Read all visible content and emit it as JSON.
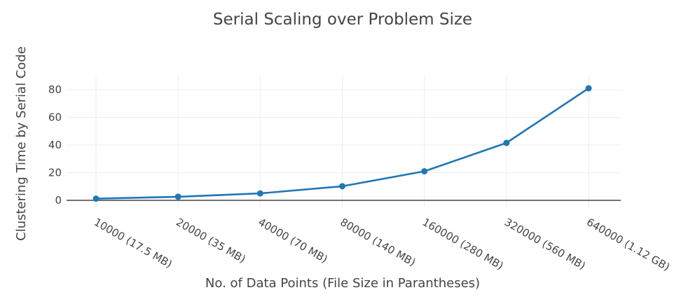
{
  "chart_data": {
    "type": "line",
    "title": "Serial Scaling over Problem Size",
    "xlabel": "No. of Data Points (File Size in Parantheses)",
    "ylabel": "Clustering Time by Serial Code",
    "categories": [
      "10000 (17.5 MB)",
      "20000 (35 MB)",
      "40000 (70 MB)",
      "80000 (140 MB)",
      "160000 (280 MB)",
      "320000 (560 MB)",
      "640000 (1.12 GB)"
    ],
    "y_ticks": [
      "0",
      "20",
      "40",
      "60",
      "80"
    ],
    "ylim": [
      -5,
      87
    ],
    "grid": true,
    "series": [
      {
        "values": [
          1.2,
          2.6,
          5.0,
          10.2,
          21.0,
          41.5,
          81.0
        ],
        "color": "#1f77b4"
      }
    ]
  }
}
